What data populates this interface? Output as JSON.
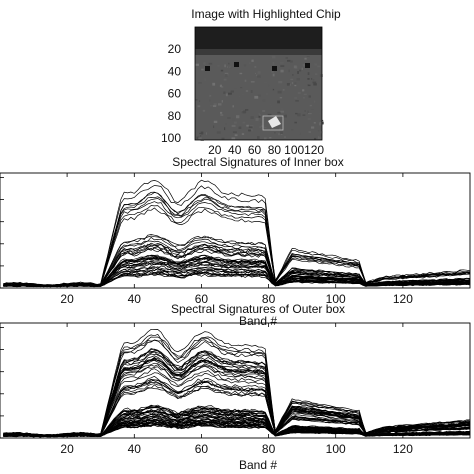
{
  "chart_data": [
    {
      "type": "image",
      "title": "Image with Highlighted Chip",
      "x_ticks": [
        "20",
        "40",
        "60",
        "80",
        "100",
        "120"
      ],
      "y_ticks": [
        "20",
        "40",
        "60",
        "80",
        "100"
      ],
      "colormap": "grayscale"
    },
    {
      "type": "line",
      "title": "Spectral Signatures of Inner box",
      "xlabel": "Band #",
      "ylabel": "",
      "x_ticks": [
        20,
        40,
        60,
        80,
        100,
        120
      ],
      "xlim": [
        0,
        140
      ],
      "ylim": [
        0,
        1
      ],
      "series_count": 45,
      "grid": false,
      "legend": "none"
    },
    {
      "type": "line",
      "title": "Spectral Signatures of Outer box",
      "xlabel": "Band #",
      "ylabel": "",
      "x_ticks": [
        20,
        40,
        60,
        80,
        100,
        120
      ],
      "xlim": [
        0,
        140
      ],
      "ylim": [
        0,
        1
      ],
      "series_count": 70,
      "grid": false,
      "legend": "none"
    }
  ],
  "colors": {
    "line": "#000000",
    "axes": "#000000",
    "background": "#ffffff"
  }
}
